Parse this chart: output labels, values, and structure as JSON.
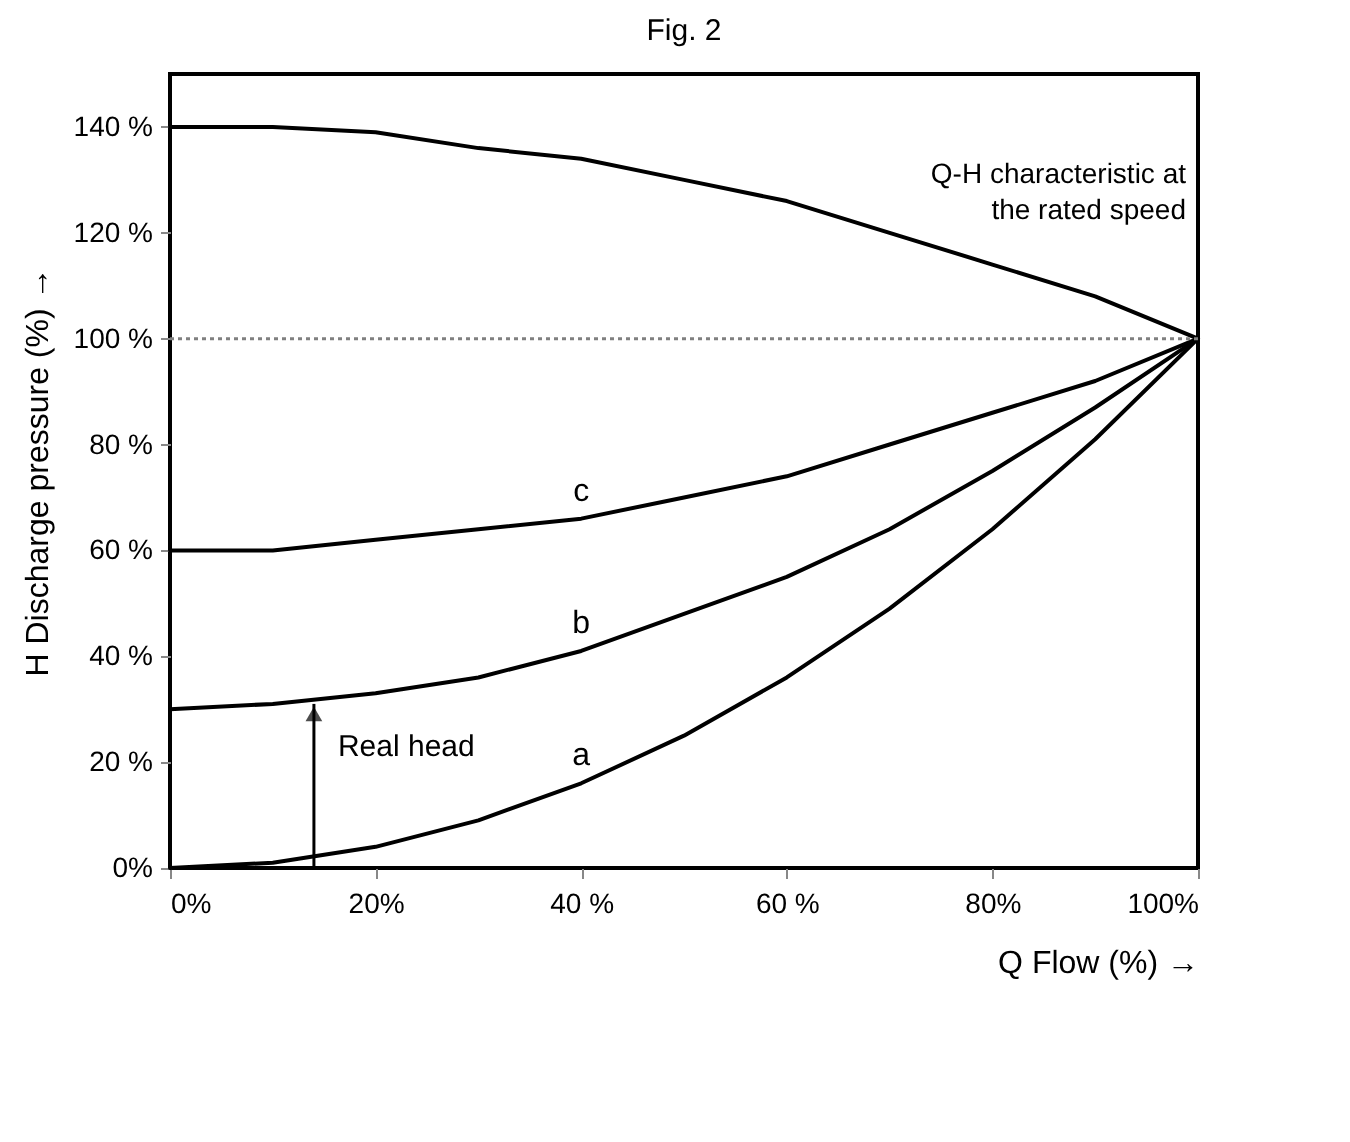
{
  "chart_data": {
    "type": "line",
    "title": "Fig. 2",
    "xlabel": "Q Flow (%) →",
    "ylabel": "H Discharge pressure (%) →",
    "x": [
      0,
      10,
      20,
      30,
      40,
      50,
      60,
      70,
      80,
      90,
      100
    ],
    "series": [
      {
        "name": "Q-H characteristic at\nthe rated speed",
        "color": "#000000",
        "values": [
          140,
          140,
          139,
          136,
          134,
          130,
          126,
          120,
          114,
          108,
          100
        ]
      },
      {
        "name": "c",
        "color": "#000000",
        "values": [
          60,
          60,
          62,
          64,
          66,
          70,
          74,
          80,
          86,
          92,
          100
        ]
      },
      {
        "name": "b",
        "color": "#000000",
        "values": [
          30,
          31,
          33,
          36,
          41,
          48,
          55,
          64,
          75,
          87,
          100
        ]
      },
      {
        "name": "a",
        "color": "#000000",
        "values": [
          0,
          1,
          4,
          9,
          16,
          25,
          36,
          49,
          64,
          81,
          100
        ]
      }
    ],
    "xlim": [
      0,
      100
    ],
    "ylim": [
      0,
      150
    ],
    "xticks": [
      {
        "value": 0,
        "label": "0%"
      },
      {
        "value": 20,
        "label": "20%"
      },
      {
        "value": 40,
        "label": "40 %"
      },
      {
        "value": 60,
        "label": "60 %"
      },
      {
        "value": 80,
        "label": "80%"
      },
      {
        "value": 100,
        "label": "100%"
      }
    ],
    "yticks": [
      {
        "value": 0,
        "label": "0%"
      },
      {
        "value": 20,
        "label": "20 %"
      },
      {
        "value": 40,
        "label": "40 %"
      },
      {
        "value": 60,
        "label": "60 %"
      },
      {
        "value": 80,
        "label": "80 %"
      },
      {
        "value": 100,
        "label": "100 %"
      },
      {
        "value": 120,
        "label": "120 %"
      },
      {
        "value": 140,
        "label": "140 %"
      }
    ],
    "ref_lines": [
      {
        "axis": "y",
        "value": 100,
        "color": "#808080",
        "line_style": "dotted"
      }
    ],
    "annotations": [
      {
        "text": "Real head",
        "x": 14,
        "y": 31
      }
    ],
    "grid": false,
    "marker": "none",
    "line_style": "solid"
  }
}
